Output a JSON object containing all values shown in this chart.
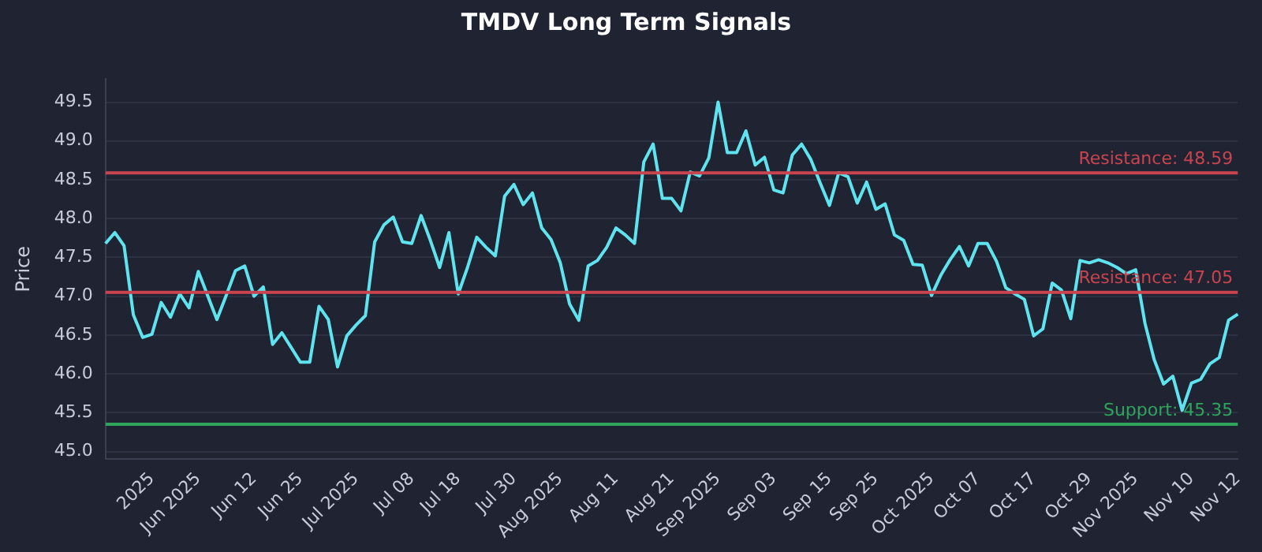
{
  "chart_data": {
    "type": "line",
    "title": "TMDV Long Term Signals",
    "ylabel": "Price",
    "categories": [
      null,
      null,
      null,
      null,
      null,
      "2025",
      null,
      null,
      null,
      null,
      "Jun 2025",
      null,
      null,
      null,
      null,
      null,
      "Jun 12",
      null,
      null,
      null,
      null,
      "Jun 25",
      null,
      null,
      null,
      null,
      null,
      "Jul 2025",
      null,
      null,
      null,
      null,
      null,
      "Jul 08",
      null,
      null,
      null,
      null,
      "Jul 18",
      null,
      null,
      null,
      null,
      null,
      "Jul 30",
      null,
      null,
      null,
      null,
      "Aug 2025",
      null,
      null,
      null,
      null,
      null,
      "Aug 11",
      null,
      null,
      null,
      null,
      null,
      "Aug 21",
      null,
      null,
      null,
      null,
      "Sep 2025",
      null,
      null,
      null,
      null,
      null,
      "Sep 03",
      null,
      null,
      null,
      null,
      null,
      "Sep 15",
      null,
      null,
      null,
      null,
      "Sep 25",
      null,
      null,
      null,
      null,
      null,
      "Oct 2025",
      null,
      null,
      null,
      null,
      "Oct 07",
      null,
      null,
      null,
      null,
      null,
      "Oct 17",
      null,
      null,
      null,
      null,
      null,
      "Oct 29",
      null,
      null,
      null,
      null,
      "Nov 2025",
      null,
      null,
      null,
      null,
      null,
      "Nov 10",
      null,
      null,
      null,
      null,
      "Nov 12"
    ],
    "series": [
      {
        "color": "#5fe3ee",
        "values": [
          47.68,
          47.82,
          47.65,
          46.76,
          46.47,
          46.51,
          46.92,
          46.73,
          47.03,
          46.85,
          47.32,
          47.01,
          46.7,
          47.01,
          47.33,
          47.39,
          47.0,
          47.12,
          46.38,
          46.53,
          46.34,
          46.15,
          46.15,
          46.87,
          46.7,
          46.09,
          46.49,
          46.63,
          46.75,
          47.7,
          47.92,
          48.02,
          47.7,
          47.68,
          48.04,
          47.72,
          47.37,
          47.82,
          47.03,
          47.37,
          47.76,
          47.63,
          47.52,
          48.29,
          48.44,
          48.18,
          48.33,
          47.88,
          47.73,
          47.43,
          46.9,
          46.69,
          47.39,
          47.46,
          47.63,
          47.88,
          47.79,
          47.68,
          48.73,
          48.96,
          48.26,
          48.26,
          48.1,
          48.6,
          48.55,
          48.78,
          49.5,
          48.85,
          48.85,
          49.13,
          48.69,
          48.79,
          48.37,
          48.33,
          48.82,
          48.96,
          48.76,
          48.46,
          48.17,
          48.59,
          48.54,
          48.2,
          48.47,
          48.12,
          48.19,
          47.79,
          47.72,
          47.41,
          47.4,
          47.01,
          47.27,
          47.47,
          47.64,
          47.39,
          47.68,
          47.68,
          47.45,
          47.11,
          47.03,
          46.96,
          46.49,
          46.58,
          47.17,
          47.08,
          46.71,
          47.46,
          47.43,
          47.47,
          47.43,
          47.37,
          47.29,
          47.34,
          46.65,
          46.18,
          45.87,
          45.97,
          45.53,
          45.88,
          45.93,
          46.13,
          46.21,
          46.69,
          46.77
        ]
      }
    ],
    "ylim": [
      44.9,
      49.8
    ],
    "yticks": [
      {
        "value": 45,
        "label": "45.0"
      },
      45.5,
      {
        "value": 46,
        "label": "46.0"
      },
      46.5,
      {
        "value": 47,
        "label": "47.0"
      },
      47.5,
      {
        "value": 48,
        "label": "48.0"
      },
      48.5,
      {
        "value": 49,
        "label": "49.0"
      },
      49.5
    ],
    "ref_lines": [
      {
        "axis": "y",
        "value": 48.59,
        "label": "Resistance: 48.59",
        "color": "#c9444f"
      },
      {
        "axis": "y",
        "value": 47.05,
        "label": "Resistance: 47.05",
        "color": "#c9444f"
      },
      {
        "axis": "y",
        "value": 45.35,
        "label": "Support: 45.35",
        "color": "#2fa55c"
      }
    ],
    "grid": "y",
    "legend": false,
    "marker": "none",
    "line_style": "solid"
  }
}
